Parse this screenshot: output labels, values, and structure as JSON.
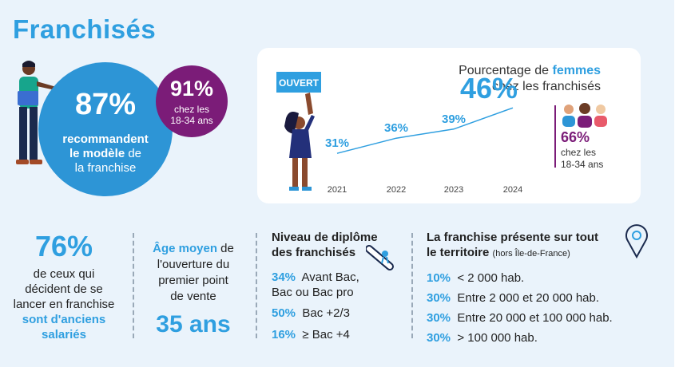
{
  "title": "Franchisés",
  "recommend": {
    "pct": "87%",
    "line1": "recommandent",
    "line2_bold": "le modèle",
    "line2_rest": " de",
    "line3": "la franchise"
  },
  "young": {
    "pct": "91%",
    "line1": "chez les",
    "line2": "18-34 ans"
  },
  "open_sign": "OUVERT",
  "women": {
    "title_prefix": "Pourcentage de ",
    "title_highlight": "femmes",
    "title_line2": "chez les franchisés",
    "young_pct": "66%",
    "young_l1": "chez les",
    "young_l2": "18-34 ans"
  },
  "chart_data": {
    "type": "line",
    "x": [
      "2021",
      "2022",
      "2023",
      "2024"
    ],
    "series": [
      {
        "values": [
          31,
          36,
          39,
          46
        ]
      }
    ],
    "data_labels": [
      "31%",
      "36%",
      "39%",
      "46%"
    ],
    "title": "Pourcentage de femmes chez les franchisés",
    "grid": false,
    "accent": "#2f9fe0"
  },
  "salaries": {
    "pct": "76%",
    "l1": "de ceux qui",
    "l2": "décident de se",
    "l3": "lancer en franchise",
    "l4": "sont d'anciens",
    "l5": "salariés"
  },
  "age": {
    "l1_bold": "Âge moyen",
    "l1_rest": " de",
    "l2": "l'ouverture du",
    "l3": "premier point",
    "l4": "de vente",
    "value": "35 ans"
  },
  "diploma": {
    "title_l1": "Niveau de diplôme",
    "title_l2": "des franchisés",
    "items": [
      {
        "pct": "34%",
        "label": "Avant Bac,",
        "label2": "Bac ou Bac pro"
      },
      {
        "pct": "50%",
        "label": "Bac +2/3"
      },
      {
        "pct": "16%",
        "label": "≥ Bac +4"
      }
    ]
  },
  "territory": {
    "title_l1": "La franchise présente sur tout",
    "title_l2": "le territoire",
    "note": "(hors Île-de-France)",
    "items": [
      {
        "pct": "10%",
        "label": "< 2 000 hab."
      },
      {
        "pct": "30%",
        "label": "Entre 2 000 et 20 000 hab."
      },
      {
        "pct": "30%",
        "label": "Entre 20 000 et 100 000 hab."
      },
      {
        "pct": "30%",
        "label": "> 100 000 hab."
      }
    ]
  },
  "colors": {
    "blue": "#2f9fe0",
    "circle_blue": "#2d95d6",
    "purple": "#7b1c78",
    "background": "#eaf3fb"
  }
}
